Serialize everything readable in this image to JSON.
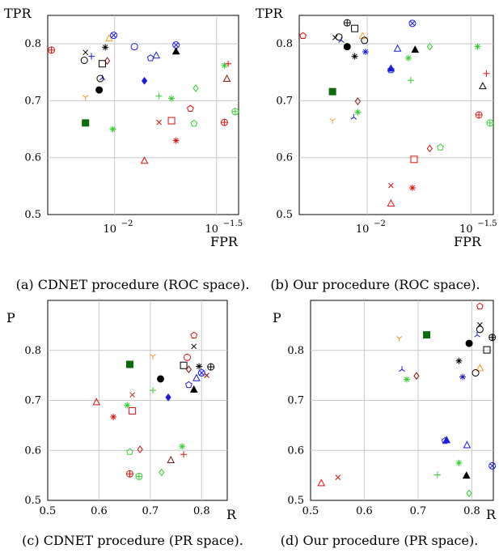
{
  "chart_data": [
    {
      "type": "scatter",
      "caption": "(a) CDNET procedure (ROC space).",
      "xlabel": "FPR",
      "ylabel": "TPR",
      "x_scale": "log",
      "xlim": [
        0.0047,
        0.0405
      ],
      "ylim": [
        0.5,
        0.85
      ],
      "xticks": [
        {
          "value": 0.01,
          "base": "10",
          "exp": "−2"
        },
        {
          "value": 0.0316,
          "base": "10",
          "exp": "−1.5"
        }
      ],
      "yticks": [
        "0.5",
        "0.6",
        "0.7",
        "0.8"
      ],
      "ytick_values": [
        0.5,
        0.6,
        0.7,
        0.8
      ],
      "grid": true,
      "points": [
        {
          "x": 0.0049,
          "y": 0.789,
          "marker": "circle-plus",
          "color": "#e01010"
        },
        {
          "x": 0.0072,
          "y": 0.785,
          "marker": "x",
          "color": "#000000"
        },
        {
          "x": 0.0077,
          "y": 0.778,
          "marker": "plus",
          "color": "#1a1ae0"
        },
        {
          "x": 0.0071,
          "y": 0.771,
          "marker": "circle",
          "color": "#000000"
        },
        {
          "x": 0.0087,
          "y": 0.765,
          "marker": "square",
          "color": "#000000"
        },
        {
          "x": 0.009,
          "y": 0.794,
          "marker": "star",
          "color": "#000000"
        },
        {
          "x": 0.0094,
          "y": 0.81,
          "marker": "triangle",
          "color": "#f0a020"
        },
        {
          "x": 0.0099,
          "y": 0.815,
          "marker": "circle-x",
          "color": "#1a1ae0"
        },
        {
          "x": 0.0092,
          "y": 0.77,
          "marker": "diamond",
          "color": "#8b1010"
        },
        {
          "x": 0.0087,
          "y": 0.74,
          "marker": "tri-y",
          "color": "#1a1ae0"
        },
        {
          "x": 0.0085,
          "y": 0.739,
          "marker": "circle",
          "color": "#000000"
        },
        {
          "x": 0.0084,
          "y": 0.719,
          "marker": "circle-filled",
          "color": "#000000"
        },
        {
          "x": 0.0072,
          "y": 0.706,
          "marker": "tri-down",
          "color": "#f0a020"
        },
        {
          "x": 0.0072,
          "y": 0.661,
          "marker": "square-filled",
          "color": "#0a6b0a"
        },
        {
          "x": 0.0098,
          "y": 0.65,
          "marker": "star",
          "color": "#30d030"
        },
        {
          "x": 0.0125,
          "y": 0.795,
          "marker": "circle",
          "color": "#1a1ae0"
        },
        {
          "x": 0.016,
          "y": 0.78,
          "marker": "triangle",
          "color": "#1a1ae0"
        },
        {
          "x": 0.015,
          "y": 0.775,
          "marker": "pentagon",
          "color": "#1a1ae0"
        },
        {
          "x": 0.02,
          "y": 0.798,
          "marker": "circle-x",
          "color": "#1a1ae0"
        },
        {
          "x": 0.02,
          "y": 0.787,
          "marker": "triangle-filled",
          "color": "#000000"
        },
        {
          "x": 0.014,
          "y": 0.735,
          "marker": "diamond-filled",
          "color": "#1a1ae0"
        },
        {
          "x": 0.0165,
          "y": 0.708,
          "marker": "plus",
          "color": "#30d030"
        },
        {
          "x": 0.019,
          "y": 0.704,
          "marker": "star",
          "color": "#30d030"
        },
        {
          "x": 0.025,
          "y": 0.722,
          "marker": "diamond",
          "color": "#30d030"
        },
        {
          "x": 0.0235,
          "y": 0.686,
          "marker": "pentagon",
          "color": "#e01010"
        },
        {
          "x": 0.0165,
          "y": 0.662,
          "marker": "x",
          "color": "#e01010"
        },
        {
          "x": 0.019,
          "y": 0.665,
          "marker": "square",
          "color": "#e01010"
        },
        {
          "x": 0.0245,
          "y": 0.66,
          "marker": "pentagon",
          "color": "#30d030"
        },
        {
          "x": 0.02,
          "y": 0.63,
          "marker": "star",
          "color": "#e01010"
        },
        {
          "x": 0.014,
          "y": 0.595,
          "marker": "triangle",
          "color": "#e01010"
        },
        {
          "x": 0.0345,
          "y": 0.762,
          "marker": "star",
          "color": "#30d030"
        },
        {
          "x": 0.036,
          "y": 0.765,
          "marker": "plus",
          "color": "#e01010"
        },
        {
          "x": 0.0355,
          "y": 0.739,
          "marker": "triangle",
          "color": "#8b1010"
        },
        {
          "x": 0.0345,
          "y": 0.662,
          "marker": "circle-plus",
          "color": "#e01010"
        },
        {
          "x": 0.039,
          "y": 0.681,
          "marker": "circle-plus",
          "color": "#30d030"
        }
      ]
    },
    {
      "type": "scatter",
      "caption": "(b) Our procedure (ROC space).",
      "xlabel": "FPR",
      "ylabel": "TPR",
      "x_scale": "log",
      "xlim": [
        0.0047,
        0.0405
      ],
      "ylim": [
        0.5,
        0.85
      ],
      "xticks": [
        {
          "value": 0.01,
          "base": "10",
          "exp": "−2"
        },
        {
          "value": 0.0316,
          "base": "10",
          "exp": "−1.5"
        }
      ],
      "yticks": [
        "0.5",
        "0.6",
        "0.7",
        "0.8"
      ],
      "ytick_values": [
        0.5,
        0.6,
        0.7,
        0.8
      ],
      "grid": true,
      "points": [
        {
          "x": 0.0049,
          "y": 0.814,
          "marker": "pentagon",
          "color": "#e01010"
        },
        {
          "x": 0.007,
          "y": 0.811,
          "marker": "x",
          "color": "#000000"
        },
        {
          "x": 0.0073,
          "y": 0.812,
          "marker": "circle",
          "color": "#000000"
        },
        {
          "x": 0.0075,
          "y": 0.806,
          "marker": "tri-y",
          "color": "#1a1ae0"
        },
        {
          "x": 0.008,
          "y": 0.837,
          "marker": "circle-plus",
          "color": "#000000"
        },
        {
          "x": 0.0087,
          "y": 0.827,
          "marker": "square",
          "color": "#000000"
        },
        {
          "x": 0.008,
          "y": 0.795,
          "marker": "circle-filled",
          "color": "#000000"
        },
        {
          "x": 0.0087,
          "y": 0.778,
          "marker": "star",
          "color": "#000000"
        },
        {
          "x": 0.0095,
          "y": 0.814,
          "marker": "triangle",
          "color": "#f0a020"
        },
        {
          "x": 0.0097,
          "y": 0.806,
          "marker": "circle",
          "color": "#000000"
        },
        {
          "x": 0.0098,
          "y": 0.786,
          "marker": "star",
          "color": "#1a1ae0"
        },
        {
          "x": 0.0068,
          "y": 0.716,
          "marker": "square-filled",
          "color": "#0a6b0a"
        },
        {
          "x": 0.0068,
          "y": 0.665,
          "marker": "tri-down",
          "color": "#f0a020"
        },
        {
          "x": 0.009,
          "y": 0.699,
          "marker": "diamond",
          "color": "#8b1010"
        },
        {
          "x": 0.009,
          "y": 0.68,
          "marker": "star",
          "color": "#30d030"
        },
        {
          "x": 0.0086,
          "y": 0.671,
          "marker": "tri-y",
          "color": "#1a1ae0"
        },
        {
          "x": 0.0165,
          "y": 0.836,
          "marker": "circle-x",
          "color": "#1a1ae0"
        },
        {
          "x": 0.014,
          "y": 0.792,
          "marker": "triangle",
          "color": "#1a1ae0"
        },
        {
          "x": 0.013,
          "y": 0.757,
          "marker": "triangle-filled",
          "color": "#1a1ae0"
        },
        {
          "x": 0.013,
          "y": 0.754,
          "marker": "pentagon",
          "color": "#1a1ae0"
        },
        {
          "x": 0.0158,
          "y": 0.775,
          "marker": "star",
          "color": "#30d030"
        },
        {
          "x": 0.017,
          "y": 0.79,
          "marker": "triangle-filled",
          "color": "#000000"
        },
        {
          "x": 0.02,
          "y": 0.795,
          "marker": "diamond",
          "color": "#30d030"
        },
        {
          "x": 0.0162,
          "y": 0.736,
          "marker": "plus",
          "color": "#30d030"
        },
        {
          "x": 0.034,
          "y": 0.795,
          "marker": "star",
          "color": "#30d030"
        },
        {
          "x": 0.0375,
          "y": 0.748,
          "marker": "plus",
          "color": "#e01010"
        },
        {
          "x": 0.036,
          "y": 0.726,
          "marker": "triangle",
          "color": "#000000"
        },
        {
          "x": 0.0345,
          "y": 0.675,
          "marker": "circle-plus",
          "color": "#e01010"
        },
        {
          "x": 0.039,
          "y": 0.661,
          "marker": "circle-plus",
          "color": "#30d030"
        },
        {
          "x": 0.02,
          "y": 0.616,
          "marker": "diamond",
          "color": "#e01010"
        },
        {
          "x": 0.0225,
          "y": 0.618,
          "marker": "pentagon",
          "color": "#30d030"
        },
        {
          "x": 0.0168,
          "y": 0.597,
          "marker": "square",
          "color": "#e01010"
        },
        {
          "x": 0.013,
          "y": 0.551,
          "marker": "x",
          "color": "#e01010"
        },
        {
          "x": 0.0165,
          "y": 0.547,
          "marker": "star",
          "color": "#e01010"
        },
        {
          "x": 0.013,
          "y": 0.52,
          "marker": "triangle",
          "color": "#e01010"
        }
      ]
    },
    {
      "type": "scatter",
      "caption": "(c) CDNET procedure (PR space).",
      "xlabel": "R",
      "ylabel": "P",
      "x_scale": "linear",
      "xlim": [
        0.5,
        0.85
      ],
      "ylim": [
        0.5,
        0.9
      ],
      "xticks": [
        {
          "value": 0.5,
          "label": "0.5"
        },
        {
          "value": 0.6,
          "label": "0.6"
        },
        {
          "value": 0.7,
          "label": "0.7"
        },
        {
          "value": 0.8,
          "label": "0.8"
        }
      ],
      "yticks": [
        "0.5",
        "0.6",
        "0.7",
        "0.8"
      ],
      "ytick_values": [
        0.5,
        0.6,
        0.7,
        0.8
      ],
      "grid": true,
      "points": [
        {
          "x": 0.785,
          "y": 0.83,
          "marker": "pentagon",
          "color": "#e01010"
        },
        {
          "x": 0.785,
          "y": 0.808,
          "marker": "x",
          "color": "#000000"
        },
        {
          "x": 0.705,
          "y": 0.788,
          "marker": "tri-down",
          "color": "#f0a020"
        },
        {
          "x": 0.772,
          "y": 0.786,
          "marker": "circle",
          "color": "#e01010"
        },
        {
          "x": 0.66,
          "y": 0.772,
          "marker": "square-filled",
          "color": "#0a6b0a"
        },
        {
          "x": 0.765,
          "y": 0.77,
          "marker": "square",
          "color": "#000000"
        },
        {
          "x": 0.795,
          "y": 0.768,
          "marker": "star",
          "color": "#000000"
        },
        {
          "x": 0.818,
          "y": 0.767,
          "marker": "circle-plus",
          "color": "#000000"
        },
        {
          "x": 0.775,
          "y": 0.762,
          "marker": "diamond",
          "color": "#8b1010"
        },
        {
          "x": 0.8,
          "y": 0.755,
          "marker": "circle-x",
          "color": "#1a1ae0"
        },
        {
          "x": 0.81,
          "y": 0.75,
          "marker": "x",
          "color": "#8b1010"
        },
        {
          "x": 0.79,
          "y": 0.745,
          "marker": "triangle",
          "color": "#1a1ae0"
        },
        {
          "x": 0.72,
          "y": 0.743,
          "marker": "circle-filled",
          "color": "#000000"
        },
        {
          "x": 0.775,
          "y": 0.731,
          "marker": "pentagon",
          "color": "#1a1ae0"
        },
        {
          "x": 0.785,
          "y": 0.722,
          "marker": "triangle-filled",
          "color": "#000000"
        },
        {
          "x": 0.705,
          "y": 0.72,
          "marker": "plus",
          "color": "#30d030"
        },
        {
          "x": 0.735,
          "y": 0.706,
          "marker": "diamond-filled",
          "color": "#1a1ae0"
        },
        {
          "x": 0.595,
          "y": 0.697,
          "marker": "triangle",
          "color": "#e01010"
        },
        {
          "x": 0.655,
          "y": 0.69,
          "marker": "star",
          "color": "#30d030"
        },
        {
          "x": 0.665,
          "y": 0.679,
          "marker": "square",
          "color": "#e01010"
        },
        {
          "x": 0.628,
          "y": 0.667,
          "marker": "star",
          "color": "#e01010"
        },
        {
          "x": 0.665,
          "y": 0.711,
          "marker": "x",
          "color": "#e01010"
        },
        {
          "x": 0.68,
          "y": 0.602,
          "marker": "diamond",
          "color": "#e01010"
        },
        {
          "x": 0.66,
          "y": 0.597,
          "marker": "pentagon",
          "color": "#30d030"
        },
        {
          "x": 0.762,
          "y": 0.608,
          "marker": "star",
          "color": "#30d030"
        },
        {
          "x": 0.765,
          "y": 0.592,
          "marker": "plus",
          "color": "#e01010"
        },
        {
          "x": 0.74,
          "y": 0.581,
          "marker": "triangle",
          "color": "#8b1010"
        },
        {
          "x": 0.722,
          "y": 0.556,
          "marker": "diamond",
          "color": "#30d030"
        },
        {
          "x": 0.66,
          "y": 0.553,
          "marker": "circle-plus",
          "color": "#e01010"
        },
        {
          "x": 0.678,
          "y": 0.548,
          "marker": "circle-plus",
          "color": "#30d030"
        }
      ]
    },
    {
      "type": "scatter",
      "caption": "(d) Our procedure (PR space).",
      "xlabel": "R",
      "ylabel": "P",
      "x_scale": "linear",
      "xlim": [
        0.5,
        0.84
      ],
      "ylim": [
        0.5,
        0.9
      ],
      "xticks": [
        {
          "value": 0.5,
          "label": "0.5"
        },
        {
          "value": 0.6,
          "label": "0.6"
        },
        {
          "value": 0.7,
          "label": "0.7"
        },
        {
          "value": 0.8,
          "label": "0.8"
        }
      ],
      "yticks": [
        "0.5",
        "0.6",
        "0.7",
        "0.8"
      ],
      "ytick_values": [
        0.5,
        0.6,
        0.7,
        0.8
      ],
      "grid": true,
      "points": [
        {
          "x": 0.815,
          "y": 0.888,
          "marker": "pentagon",
          "color": "#e01010"
        },
        {
          "x": 0.815,
          "y": 0.851,
          "marker": "x",
          "color": "#000000"
        },
        {
          "x": 0.815,
          "y": 0.842,
          "marker": "circle",
          "color": "#000000"
        },
        {
          "x": 0.838,
          "y": 0.826,
          "marker": "circle-plus",
          "color": "#000000"
        },
        {
          "x": 0.81,
          "y": 0.831,
          "marker": "tri-y",
          "color": "#1a1ae0"
        },
        {
          "x": 0.716,
          "y": 0.831,
          "marker": "square-filled",
          "color": "#0a6b0a"
        },
        {
          "x": 0.665,
          "y": 0.824,
          "marker": "tri-down",
          "color": "#f0a020"
        },
        {
          "x": 0.795,
          "y": 0.814,
          "marker": "circle-filled",
          "color": "#000000"
        },
        {
          "x": 0.828,
          "y": 0.801,
          "marker": "square",
          "color": "#000000"
        },
        {
          "x": 0.776,
          "y": 0.779,
          "marker": "star",
          "color": "#000000"
        },
        {
          "x": 0.815,
          "y": 0.765,
          "marker": "triangle",
          "color": "#f0a020"
        },
        {
          "x": 0.807,
          "y": 0.755,
          "marker": "circle",
          "color": "#000000"
        },
        {
          "x": 0.67,
          "y": 0.762,
          "marker": "tri-y",
          "color": "#1a1ae0"
        },
        {
          "x": 0.697,
          "y": 0.749,
          "marker": "diamond",
          "color": "#8b1010"
        },
        {
          "x": 0.783,
          "y": 0.747,
          "marker": "star",
          "color": "#1a1ae0"
        },
        {
          "x": 0.679,
          "y": 0.742,
          "marker": "star",
          "color": "#30d030"
        },
        {
          "x": 0.753,
          "y": 0.621,
          "marker": "triangle-filled",
          "color": "#1a1ae0"
        },
        {
          "x": 0.75,
          "y": 0.619,
          "marker": "pentagon",
          "color": "#1a1ae0"
        },
        {
          "x": 0.791,
          "y": 0.611,
          "marker": "triangle",
          "color": "#1a1ae0"
        },
        {
          "x": 0.776,
          "y": 0.575,
          "marker": "star",
          "color": "#30d030"
        },
        {
          "x": 0.838,
          "y": 0.569,
          "marker": "circle-x",
          "color": "#1a1ae0"
        },
        {
          "x": 0.736,
          "y": 0.551,
          "marker": "plus",
          "color": "#30d030"
        },
        {
          "x": 0.79,
          "y": 0.55,
          "marker": "triangle-filled",
          "color": "#000000"
        },
        {
          "x": 0.52,
          "y": 0.535,
          "marker": "triangle",
          "color": "#e01010"
        },
        {
          "x": 0.551,
          "y": 0.546,
          "marker": "x",
          "color": "#e01010"
        },
        {
          "x": 0.795,
          "y": 0.514,
          "marker": "diamond",
          "color": "#30d030"
        }
      ]
    }
  ]
}
